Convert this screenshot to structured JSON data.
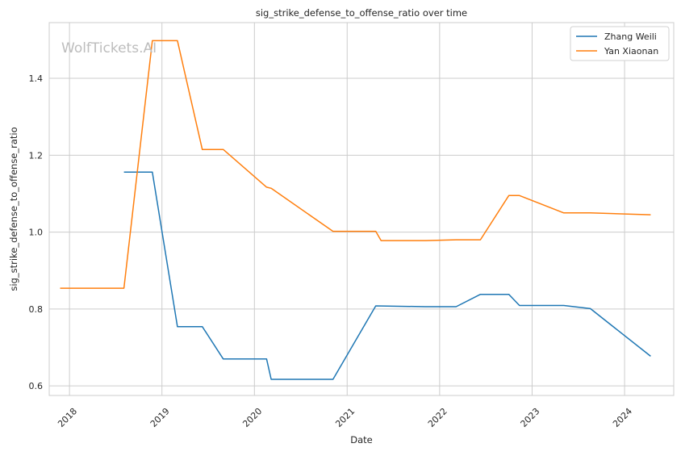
{
  "watermark": "WolfTickets.AI",
  "chart_data": {
    "type": "line",
    "title": "sig_strike_defense_to_offense_ratio over time",
    "xlabel": "Date",
    "ylabel": "sig_strike_defense_to_offense_ratio",
    "xlim": [
      "2017-10-13",
      "2024-07-13"
    ],
    "ylim": [
      0.575,
      1.545
    ],
    "x_ticks": [
      "2018",
      "2019",
      "2020",
      "2021",
      "2022",
      "2023",
      "2024"
    ],
    "y_ticks": [
      "0.6",
      "0.8",
      "1.0",
      "1.2",
      "1.4"
    ],
    "y_tick_values": [
      0.6,
      0.8,
      1.0,
      1.2,
      1.4
    ],
    "grid": true,
    "legend_position": "top-right",
    "series": [
      {
        "name": "Zhang Weili",
        "color": "#1f77b4",
        "points": [
          [
            "2018-08-04",
            1.156
          ],
          [
            "2018-11-24",
            1.156
          ],
          [
            "2019-03-03",
            0.754
          ],
          [
            "2019-06-09",
            0.754
          ],
          [
            "2019-08-31",
            0.67
          ],
          [
            "2020-02-18",
            0.67
          ],
          [
            "2020-03-07",
            0.617
          ],
          [
            "2020-11-06",
            0.617
          ],
          [
            "2021-04-24",
            0.808
          ],
          [
            "2021-11-06",
            0.806
          ],
          [
            "2022-03-07",
            0.806
          ],
          [
            "2022-06-11",
            0.838
          ],
          [
            "2022-10-01",
            0.838
          ],
          [
            "2022-11-12",
            0.809
          ],
          [
            "2023-05-06",
            0.809
          ],
          [
            "2023-08-19",
            0.801
          ],
          [
            "2024-04-13",
            0.677
          ]
        ]
      },
      {
        "name": "Yan Xiaonan",
        "color": "#ff7f0e",
        "points": [
          [
            "2017-11-25",
            0.854
          ],
          [
            "2018-08-04",
            0.854
          ],
          [
            "2018-11-24",
            1.498
          ],
          [
            "2019-03-03",
            1.498
          ],
          [
            "2019-06-09",
            1.215
          ],
          [
            "2019-08-31",
            1.215
          ],
          [
            "2020-02-18",
            1.117
          ],
          [
            "2020-03-07",
            1.114
          ],
          [
            "2020-11-06",
            1.002
          ],
          [
            "2021-04-24",
            1.002
          ],
          [
            "2021-05-15",
            0.978
          ],
          [
            "2021-11-06",
            0.978
          ],
          [
            "2022-03-07",
            0.98
          ],
          [
            "2022-06-11",
            0.98
          ],
          [
            "2022-10-01",
            1.095
          ],
          [
            "2022-11-12",
            1.095
          ],
          [
            "2023-05-06",
            1.05
          ],
          [
            "2023-08-19",
            1.05
          ],
          [
            "2024-04-13",
            1.045
          ]
        ]
      }
    ]
  }
}
